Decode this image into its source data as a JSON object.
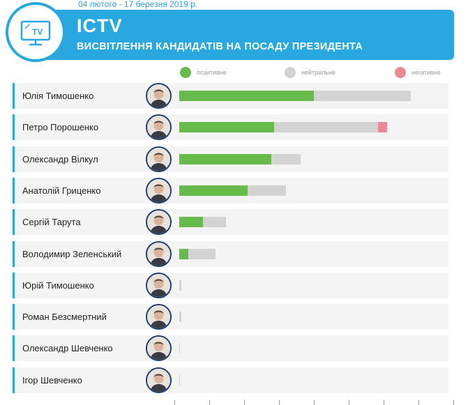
{
  "date_range": "04 лютого - 17 березня 2019 р.",
  "header": {
    "channel": "ICTV",
    "subtitle": "ВИСВІТЛЕННЯ КАНДИДАТІВ НА ПОСАДУ ПРЕЗИДЕНТА",
    "logo_text": "TV"
  },
  "legend": {
    "positive": "позитивне",
    "neutral": "нейтральне",
    "negative": "негативне"
  },
  "colors": {
    "accent": "#29a8e0",
    "positive": "#66bb4a",
    "neutral": "#d3d3d3",
    "negative": "#e9899a"
  },
  "chart_data": {
    "type": "bar",
    "orientation": "horizontal",
    "stacked": true,
    "categories": [
      "Юлія Тимошенко",
      "Петро Порошенко",
      "Олександр Вілкул",
      "Анатолій Гриценко",
      "Сергій Тарута",
      "Володимир Зеленський",
      "Юрій Тимошенко",
      "Роман Безсмертний",
      "Олександр Шевченко",
      "Ігор Шевченко"
    ],
    "series": [
      {
        "name": "позитивне",
        "values": [
          193,
          136,
          132,
          98,
          34,
          13,
          0,
          0,
          0,
          0
        ]
      },
      {
        "name": "нейтральне",
        "values": [
          139,
          149,
          42,
          55,
          33,
          39,
          3,
          3,
          1,
          1
        ]
      },
      {
        "name": "негативне",
        "values": [
          0,
          13,
          0,
          0,
          0,
          0,
          0,
          0,
          0,
          0
        ]
      }
    ],
    "xlim": [
      0,
      380
    ],
    "grid": false,
    "legend_position": "top"
  }
}
